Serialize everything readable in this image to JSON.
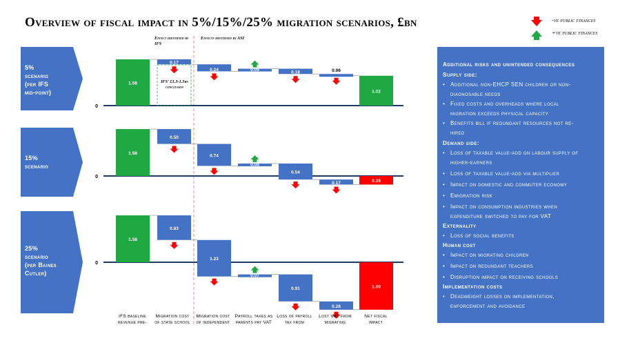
{
  "title": "Overview of fiscal impact in 5%/15%/25% migration scenarios, £bn",
  "legend": {
    "negative_label": "-ve public finances",
    "positive_label": "+ve public finances",
    "negative_color": "#ff0000",
    "positive_color": "#1fa843",
    "negative_icon": "red-down-arrow-icon",
    "positive_icon": "green-up-arrow-icon"
  },
  "annotations": {
    "ifs_note": "Effect identified by IFS",
    "asi_note": "Effects identified by ASI",
    "ifs_range": "IFS' £1.3-1.5bn conclusion"
  },
  "scenarios": [
    {
      "label_lines": [
        "5%",
        "scenario",
        "(per IFS",
        "mid-point)"
      ]
    },
    {
      "label_lines": [
        "15%",
        "scenario"
      ]
    },
    {
      "label_lines": [
        "25%",
        "scenario",
        "(per Baines",
        "Cutler)"
      ]
    }
  ],
  "x_labels": [
    [
      "IFS baseline",
      "revenue pre-"
    ],
    [
      "Migration cost",
      "of state school"
    ],
    [
      "Migration cost",
      "of independent"
    ],
    [
      "Payroll taxes as",
      "parents pay VAT"
    ],
    [
      "Loss of payroll",
      "tax from"
    ],
    [
      "Lost VAT from",
      "migrating"
    ],
    [
      "Net fiscal",
      "impact"
    ]
  ],
  "chart_data": [
    {
      "type": "bar",
      "subtype": "waterfall",
      "title": "5% scenario (per IFS mid-point)",
      "zero_label": "0",
      "categories": [
        "IFS baseline revenue pre-",
        "Migration cost of state school",
        "Migration cost of independent",
        "Payroll taxes as parents pay VAT",
        "Loss of payroll tax from",
        "Lost VAT from migrating",
        "Net fiscal impact"
      ],
      "values": [
        1.58,
        -0.17,
        -0.24,
        0.09,
        -0.18,
        -0.06,
        1.02
      ],
      "labels": [
        "1.58",
        "0.17",
        "0.24",
        "0.09",
        "0.18",
        "0.06",
        "1.02"
      ]
    },
    {
      "type": "bar",
      "subtype": "waterfall",
      "title": "15% scenario",
      "zero_label": "0",
      "categories": [
        "IFS baseline revenue pre-",
        "Migration cost of state school",
        "Migration cost of independent",
        "Payroll taxes as parents pay VAT",
        "Loss of payroll tax from",
        "Lost VAT from migrating",
        "Net fiscal impact"
      ],
      "values": [
        1.58,
        -0.5,
        -0.74,
        0.08,
        -0.54,
        -0.17,
        -0.29
      ],
      "labels": [
        "1.58",
        "0.50",
        "0.74",
        "0.08",
        "0.54",
        "0.17",
        "0.29"
      ]
    },
    {
      "type": "bar",
      "subtype": "waterfall",
      "title": "25% scenario (per Baines Cutler)",
      "zero_label": "0",
      "categories": [
        "IFS baseline revenue pre-",
        "Migration cost of state school",
        "Migration cost of independent",
        "Payroll taxes as parents pay VAT",
        "Loss of payroll tax from",
        "Lost VAT from migrating",
        "Net fiscal impact"
      ],
      "values": [
        1.58,
        -0.83,
        -1.23,
        0.07,
        -0.91,
        -0.28,
        -1.6
      ],
      "labels": [
        "1.58",
        "0.83",
        "1.23",
        "0.07",
        "0.91",
        "0.28",
        "1.60"
      ]
    }
  ],
  "panel": {
    "title": "Additional risks and unintended consequences",
    "sections": [
      {
        "heading": "Supply side:",
        "items": [
          [
            "Additional non-EHCP SEN children or non-",
            "diagnosable needs"
          ],
          [
            "Fixed costs and overheads where local",
            "migration exceeds physical capacity"
          ],
          [
            "Benefits bill if redundant resources not re-",
            "hired"
          ]
        ]
      },
      {
        "heading": "Demand side:",
        "items": [
          [
            "Loss of taxable value-add on labour supply of",
            "higher-earners"
          ],
          [
            "Loss of taxable value-add via multiplier"
          ],
          [
            "Impact on domestic and commuter economy"
          ],
          [
            "Emigration risk"
          ],
          [
            "Impact on consumption industries when",
            "expenditure switched to pay for VAT"
          ]
        ]
      },
      {
        "heading": "Externality",
        "items": [
          [
            "Loss of social benefits"
          ]
        ]
      },
      {
        "heading": "Human cost",
        "items": [
          [
            "Impact on migrating children"
          ],
          [
            "Impact on redundant teachers"
          ],
          [
            "Disruption impact on receiving schools"
          ]
        ]
      },
      {
        "heading": "Implementation costs",
        "items": [
          [
            "Deadweight losses on implementation,",
            "enforcement and avoidance"
          ]
        ]
      }
    ]
  }
}
